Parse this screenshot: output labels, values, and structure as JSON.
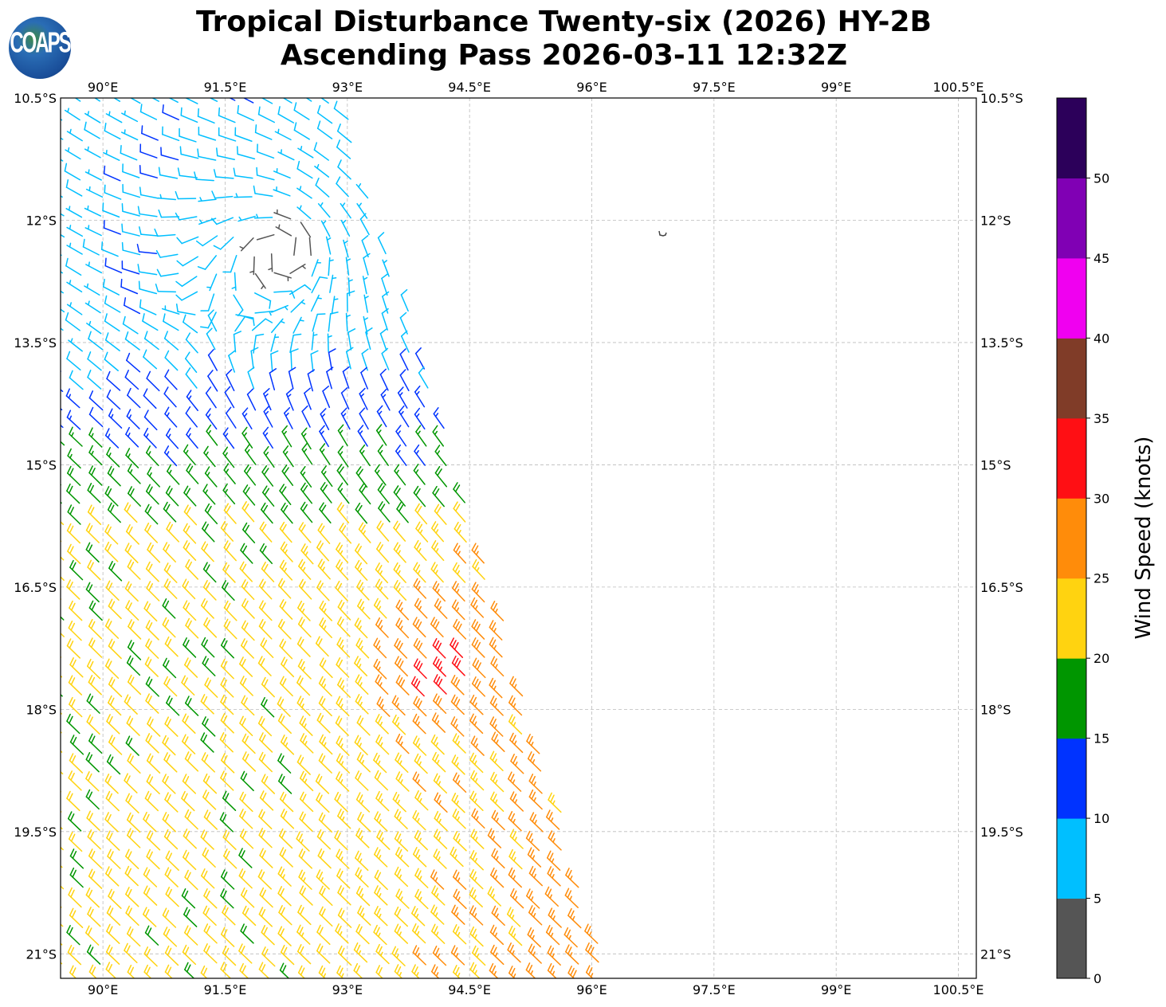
{
  "title": {
    "line1": "Tropical Disturbance Twenty-six (2026) HY-2B",
    "line2": "Ascending Pass 2026-03-11 12:32Z"
  },
  "logo": {
    "text": "COAPS"
  },
  "map": {
    "lon_ticks": [
      {
        "value": 90,
        "label": "90°E"
      },
      {
        "value": 91.5,
        "label": "91.5°E"
      },
      {
        "value": 93,
        "label": "93°E"
      },
      {
        "value": 94.5,
        "label": "94.5°E"
      },
      {
        "value": 96,
        "label": "96°E"
      },
      {
        "value": 97.5,
        "label": "97.5°E"
      },
      {
        "value": 99,
        "label": "99°E"
      },
      {
        "value": 100.5,
        "label": "100.5°E"
      }
    ],
    "lat_ticks": [
      {
        "value": -10.5,
        "label": "10.5°S"
      },
      {
        "value": -12,
        "label": "12°S"
      },
      {
        "value": -13.5,
        "label": "13.5°S"
      },
      {
        "value": -15,
        "label": "15°S"
      },
      {
        "value": -16.5,
        "label": "16.5°S"
      },
      {
        "value": -18,
        "label": "18°S"
      },
      {
        "value": -19.5,
        "label": "19.5°S"
      },
      {
        "value": -21,
        "label": "21°S"
      }
    ],
    "lon_range": [
      89.48,
      100.72
    ],
    "lat_range": [
      -21.3,
      -10.5
    ],
    "circulation_center": {
      "lon": 92.2,
      "lat": -12.4
    },
    "wind_max_center": {
      "lon": 94.1,
      "lat": -17.6
    }
  },
  "colorbar": {
    "label": "Wind Speed (knots)",
    "bins": [
      {
        "min": 0,
        "max": 5,
        "color": "#555555"
      },
      {
        "min": 5,
        "max": 10,
        "color": "#00bfff"
      },
      {
        "min": 10,
        "max": 15,
        "color": "#0033ff"
      },
      {
        "min": 15,
        "max": 20,
        "color": "#009600"
      },
      {
        "min": 20,
        "max": 25,
        "color": "#ffd310"
      },
      {
        "min": 25,
        "max": 30,
        "color": "#ff8c0a"
      },
      {
        "min": 30,
        "max": 35,
        "color": "#ff0f14"
      },
      {
        "min": 35,
        "max": 40,
        "color": "#803c28"
      },
      {
        "min": 40,
        "max": 45,
        "color": "#f000f0"
      },
      {
        "min": 45,
        "max": 50,
        "color": "#8000b4"
      },
      {
        "min": 50,
        "max": 55,
        "color": "#2c005a"
      }
    ],
    "ticks": [
      "0",
      "5",
      "10",
      "15",
      "20",
      "25",
      "30",
      "35",
      "40",
      "45",
      "50"
    ]
  }
}
